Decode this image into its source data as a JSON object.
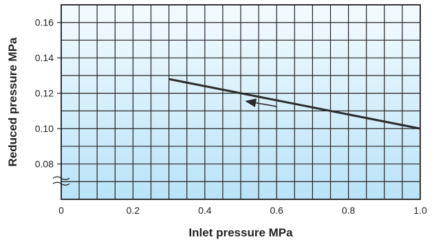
{
  "chart_data": {
    "type": "line",
    "title": "",
    "xlabel": "Inlet pressure MPa",
    "ylabel": "Reduced pressure MPa",
    "xlim": [
      0,
      1.0
    ],
    "ylim": [
      0.06,
      0.17
    ],
    "x_ticks": [
      "0",
      "0.2",
      "0.4",
      "0.6",
      "0.8",
      "1.0"
    ],
    "y_ticks": [
      "0.08",
      "0.10",
      "0.12",
      "0.14",
      "0.16"
    ],
    "x_tick_values": [
      0,
      0.2,
      0.4,
      0.6,
      0.8,
      1.0
    ],
    "y_tick_values": [
      0.08,
      0.1,
      0.12,
      0.14,
      0.16
    ],
    "axis_break": "y-axis break between 0 and 0.08",
    "grid": true,
    "series": [
      {
        "x": [
          0.3,
          1.0
        ],
        "y": [
          0.128,
          0.1
        ],
        "color": "#2b2b2b"
      }
    ],
    "annotations": [
      {
        "type": "arrow",
        "direction": "decreasing inlet pressure",
        "from": {
          "x": 0.6,
          "y": 0.1125
        },
        "to": {
          "x": 0.515,
          "y": 0.1155
        }
      }
    ],
    "colors": {
      "background_top": "#f4fbff",
      "background_bottom": "#b9e3f7",
      "grid": "#222222",
      "line": "#2b2b2b"
    }
  }
}
